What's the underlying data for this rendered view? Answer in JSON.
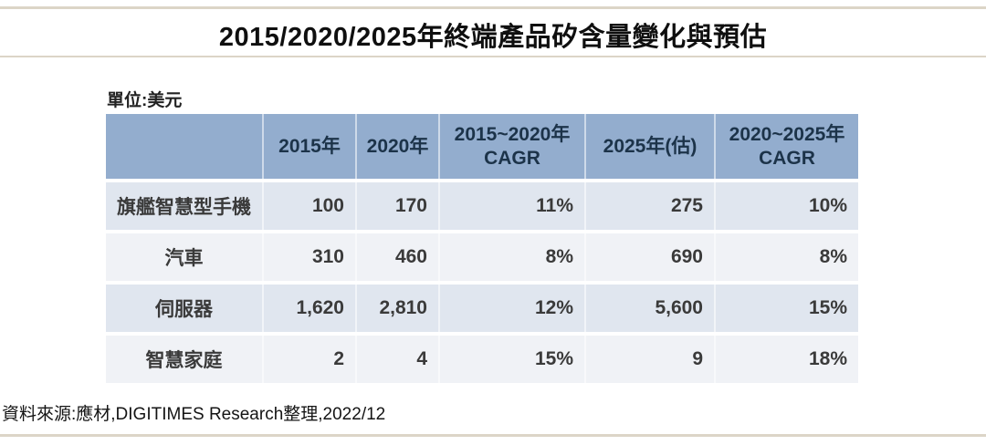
{
  "title": "2015/2020/2025年終端產品矽含量變化與預估",
  "unit_label": "單位:美元",
  "source_note": "資料來源:應材,DIGITIMES Research整理,2022/12",
  "colors": {
    "rule": "#dcd5c7",
    "header_bg": "#93adce",
    "header_text": "#1c3349",
    "row_odd": "#e0e6ef",
    "row_even": "#f0f2f6",
    "body_text": "#3a3a3a",
    "title_text": "#0f0f0f"
  },
  "chart_data": {
    "type": "table",
    "title": "2015/2020/2025年終端產品矽含量變化與預估",
    "unit": "美元",
    "columns": [
      "",
      "2015年",
      "2020年",
      "2015~2020年\nCAGR",
      "2025年(估)",
      "2020~2025年\nCAGR"
    ],
    "rows": [
      [
        "旗艦智慧型手機",
        "100",
        "170",
        "11%",
        "275",
        "10%"
      ],
      [
        "汽車",
        "310",
        "460",
        "8%",
        "690",
        "8%"
      ],
      [
        "伺服器",
        "1,620",
        "2,810",
        "12%",
        "5,600",
        "15%"
      ],
      [
        "智慧家庭",
        "2",
        "4",
        "15%",
        "9",
        "18%"
      ]
    ],
    "numeric_rows": [
      {
        "category": "旗艦智慧型手機",
        "y2015": 100,
        "y2020": 170,
        "cagr_2015_2020_pct": 11,
        "y2025_est": 275,
        "cagr_2020_2025_pct": 10
      },
      {
        "category": "汽車",
        "y2015": 310,
        "y2020": 460,
        "cagr_2015_2020_pct": 8,
        "y2025_est": 690,
        "cagr_2020_2025_pct": 8
      },
      {
        "category": "伺服器",
        "y2015": 1620,
        "y2020": 2810,
        "cagr_2015_2020_pct": 12,
        "y2025_est": 5600,
        "cagr_2020_2025_pct": 15
      },
      {
        "category": "智慧家庭",
        "y2015": 2,
        "y2020": 4,
        "cagr_2015_2020_pct": 15,
        "y2025_est": 9,
        "cagr_2020_2025_pct": 18
      }
    ]
  }
}
